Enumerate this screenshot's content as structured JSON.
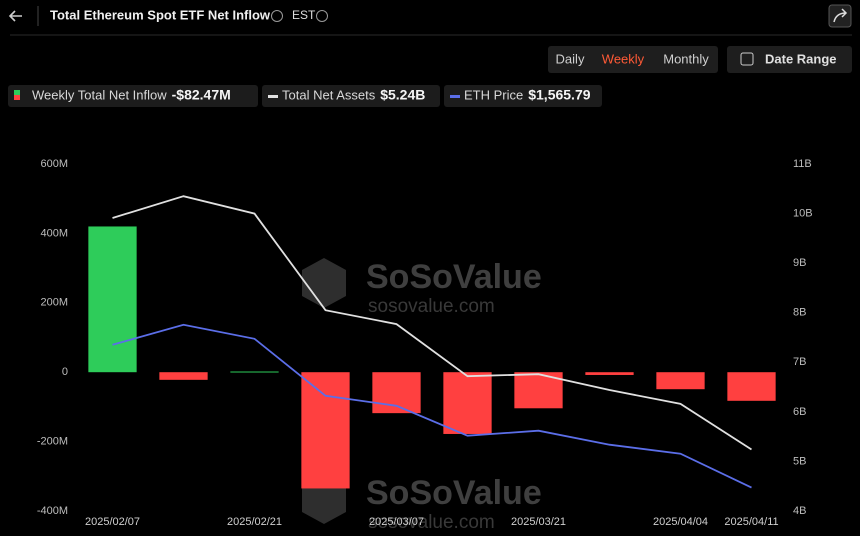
{
  "header": {
    "title": "Total Ethereum Spot ETF Net Inflow",
    "timezone": "EST"
  },
  "controls": {
    "tabs": [
      "Daily",
      "Weekly",
      "Monthly"
    ],
    "active_tab": 1,
    "date_range": "Date Range"
  },
  "watermark": {
    "brand": "SoSoValue",
    "url": "sosovalue.com"
  },
  "chart_data": {
    "type": "bar",
    "categories": [
      "2025/02/07",
      null,
      "2025/02/21",
      null,
      "2025/03/07",
      null,
      "2025/03/21",
      null,
      "2025/04/04",
      "2025/04/11"
    ],
    "series": [
      {
        "name": "Weekly Total Net Inflow",
        "type": "bar",
        "positive_color": "#2ecc5a",
        "negative_color": "#ff4040",
        "color": "#2ecc5a",
        "values": [
          420,
          -22,
          2,
          -335,
          -118,
          -178,
          -104,
          -8,
          -49,
          -82.47
        ],
        "latest_label": "-$82.47M"
      },
      {
        "name": "Total Net Assets",
        "type": "line",
        "axis": "y2",
        "color": "#e0e0e0",
        "values": [
          9.91,
          10.35,
          10.0,
          8.05,
          7.77,
          6.72,
          6.76,
          6.44,
          6.16,
          5.24
        ],
        "latest_label": "$5.24B"
      },
      {
        "name": "ETH Price",
        "type": "line",
        "axis": "y3",
        "color": "#5b6ee8",
        "values": [
          2578,
          2720,
          2621,
          2217,
          2146,
          1934,
          1969,
          1870,
          1806,
          1565.79
        ],
        "latest_label": "$1,565.79"
      }
    ],
    "ylim": [
      -400,
      600
    ],
    "yticks": [
      {
        "value": -400,
        "label": "-400M"
      },
      {
        "value": -200,
        "label": "-200M"
      },
      0,
      {
        "value": 200,
        "label": "200M"
      },
      {
        "value": 400,
        "label": "400M"
      },
      {
        "value": 600,
        "label": "600M"
      }
    ],
    "y2lim": [
      4,
      11
    ],
    "y2ticks": [
      {
        "value": 4,
        "label": "4B"
      },
      {
        "value": 5,
        "label": "5B"
      },
      {
        "value": 6,
        "label": "6B"
      },
      {
        "value": 7,
        "label": "7B"
      },
      {
        "value": 8,
        "label": "8B"
      },
      {
        "value": 9,
        "label": "9B"
      },
      {
        "value": 10,
        "label": "10B"
      },
      {
        "value": 11,
        "label": "11B"
      }
    ],
    "y3lim": [
      1400,
      3860
    ],
    "grid": false
  }
}
